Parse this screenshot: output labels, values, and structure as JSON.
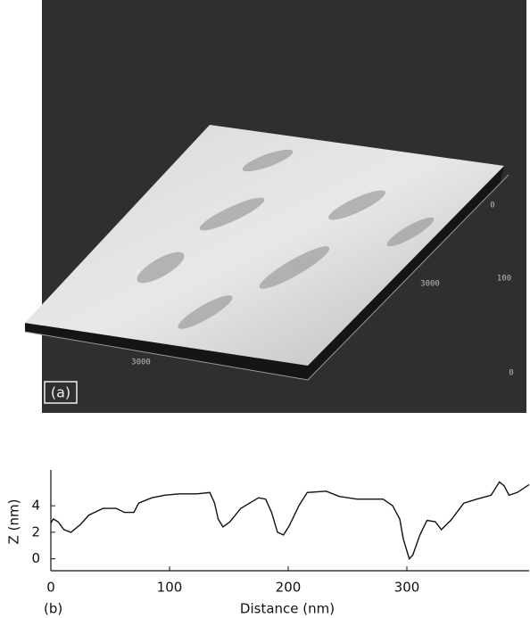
{
  "panel_a": {
    "label": "(a)",
    "axis_labels": [
      "3000",
      "3000",
      "100",
      "0",
      "0"
    ]
  },
  "chart_data": {
    "type": "line",
    "panel_label": "(b)",
    "x_label": "Distance (nm)",
    "y_label": "Z (nm)",
    "x": [
      0,
      2,
      6,
      11,
      17,
      25,
      32,
      44,
      55,
      62,
      70,
      74,
      85,
      96,
      108,
      123,
      134,
      138,
      141,
      145,
      151,
      160,
      175,
      181,
      186,
      191,
      196,
      201,
      209,
      216,
      232,
      243,
      258,
      280,
      288,
      294,
      297,
      302,
      305,
      311,
      317,
      324,
      329,
      337,
      348,
      359,
      371,
      378,
      382,
      386,
      393,
      403
    ],
    "series": [
      {
        "color": "#111111",
        "values": [
          2.7,
          3.0,
          2.8,
          2.2,
          2.0,
          2.6,
          3.3,
          3.8,
          3.8,
          3.5,
          3.5,
          4.2,
          4.6,
          4.8,
          4.9,
          4.9,
          5.0,
          4.2,
          3.0,
          2.4,
          2.8,
          3.8,
          4.6,
          4.5,
          3.5,
          2.0,
          1.8,
          2.5,
          4.0,
          5.0,
          5.1,
          4.7,
          4.5,
          4.5,
          4.0,
          3.0,
          1.5,
          0.0,
          0.3,
          1.8,
          2.9,
          2.8,
          2.2,
          2.9,
          4.2,
          4.5,
          4.8,
          5.8,
          5.5,
          4.8,
          5.0,
          5.6
        ]
      }
    ],
    "xlim": [
      0,
      403
    ],
    "ylim": [
      -0.9,
      6.7
    ],
    "xticks": [
      0,
      100,
      200,
      300
    ],
    "yticks": [
      0,
      2,
      4
    ]
  }
}
